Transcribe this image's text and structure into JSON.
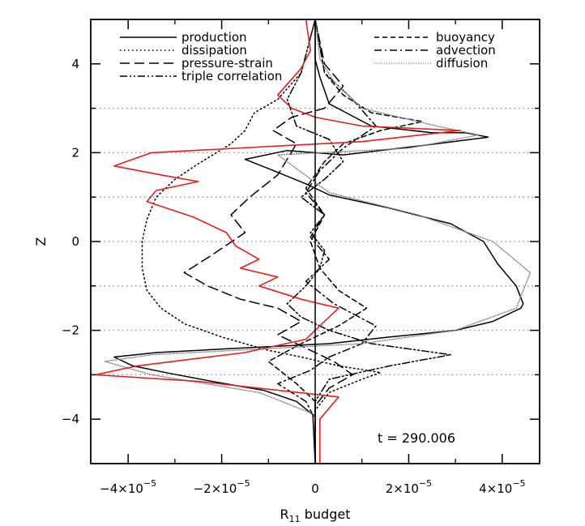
{
  "chart_data": {
    "type": "line",
    "title": "",
    "xlabel_main": "R",
    "xlabel_sub": "11",
    "xlabel_rest": " budget",
    "ylabel": "Z",
    "xlim": [
      -4.8e-05,
      4.8e-05
    ],
    "ylim": [
      -5,
      5
    ],
    "x_ticks": [
      {
        "value": -4e-05,
        "mant": "−4×10",
        "exp": "−5"
      },
      {
        "value": -2e-05,
        "mant": "−2×10",
        "exp": "−5"
      },
      {
        "value": 0,
        "mant": "0",
        "exp": ""
      },
      {
        "value": 2e-05,
        "mant": "2×10",
        "exp": "−5"
      },
      {
        "value": 4e-05,
        "mant": "4×10",
        "exp": "−5"
      }
    ],
    "y_ticks": [
      {
        "value": 4,
        "label": "4"
      },
      {
        "value": 2,
        "label": "2"
      },
      {
        "value": 0,
        "label": "0"
      },
      {
        "value": -2,
        "label": "−2"
      },
      {
        "value": -4,
        "label": "−4"
      }
    ],
    "y_gridlines": [
      3,
      2,
      1,
      0,
      -1,
      -2,
      -3
    ],
    "grid_style": "dotted horizontal",
    "annotation": "t  =  290.006",
    "annotation_position": "bottom-right",
    "legend_position": "top",
    "series": [
      {
        "name": "production",
        "style": "solid",
        "color": "#000000",
        "legend_column": "left",
        "x": [
          0,
          0,
          1e-06,
          3e-06,
          1.2e-05,
          2.5e-05,
          3.2e-05,
          3.7e-05,
          2.2e-05,
          6e-06,
          -6e-06,
          -1.5e-05,
          -9e-06,
          -2e-06,
          3e-06,
          1.6e-05,
          2.9e-05,
          3.6e-05,
          3.9e-05,
          4.3e-05,
          4.45e-05,
          4.4e-05,
          3.8e-05,
          3e-05,
          1.6e-05,
          3e-06,
          -1.6e-05,
          -3.4e-05,
          -4.3e-05,
          -3.9e-05,
          -3.2e-05,
          -2.2e-05,
          -1.1e-05,
          -4e-06,
          -5e-07,
          0
        ],
        "y": [
          5,
          4.1,
          3.7,
          3.1,
          2.6,
          2.45,
          2.45,
          2.35,
          2.15,
          1.95,
          2.05,
          1.85,
          1.6,
          1.3,
          1.05,
          0.75,
          0.4,
          0.0,
          -0.5,
          -1.0,
          -1.4,
          -1.5,
          -1.8,
          -2.0,
          -2.15,
          -2.3,
          -2.4,
          -2.5,
          -2.6,
          -2.8,
          -2.95,
          -3.15,
          -3.35,
          -3.6,
          -3.9,
          -5
        ]
      },
      {
        "name": "dissipation",
        "style": "dotted",
        "color": "#000000",
        "legend_column": "left",
        "x": [
          0,
          -3e-06,
          -8e-06,
          -1.3e-05,
          -1.5e-05,
          -1.8e-05,
          -2.5e-05,
          -3e-05,
          -3.4e-05,
          -3.6e-05,
          -3.7e-05,
          -3.7e-05,
          -3.6e-05,
          -3.3e-05,
          -2.8e-05,
          -2e-05,
          -1e-05,
          -3e-06,
          5e-06,
          1.4e-05,
          1e-05,
          3e-06,
          0,
          0
        ],
        "y": [
          5,
          3.8,
          3.2,
          2.9,
          2.5,
          2.2,
          1.75,
          1.4,
          1.0,
          0.5,
          0.0,
          -0.6,
          -1.1,
          -1.5,
          -1.85,
          -2.15,
          -2.45,
          -2.6,
          -2.8,
          -2.95,
          -3.1,
          -3.4,
          -3.8,
          -5
        ]
      },
      {
        "name": "pressure-strain",
        "style": "long-dash",
        "color": "#000000",
        "legend_column": "left",
        "x": [
          0,
          2e-06,
          6e-06,
          2e-06,
          -5e-06,
          -9e-06,
          -4e-06,
          -8e-06,
          -1.4e-05,
          -1.8e-05,
          -1.5e-05,
          -2.2e-05,
          -2.8e-05,
          -2.3e-05,
          -1.6e-05,
          -8e-06,
          -3e-06,
          -8e-06,
          -2e-06,
          4e-06,
          8e-06,
          3e-06,
          0,
          0
        ],
        "y": [
          5,
          4.0,
          3.5,
          3.0,
          2.8,
          2.5,
          2.2,
          1.5,
          1.0,
          0.6,
          0.2,
          -0.3,
          -0.7,
          -1.0,
          -1.3,
          -1.5,
          -1.8,
          -2.1,
          -2.4,
          -2.7,
          -3.0,
          -3.3,
          -3.7,
          -5
        ]
      },
      {
        "name": "triple correlation",
        "style": "dash-dot-dot",
        "color": "#000000",
        "legend_column": "left",
        "x": [
          0,
          -3e-06,
          -6e-06,
          -4e-06,
          3e-06,
          6e-06,
          2e-06,
          -3e-06,
          2e-06,
          -1e-06,
          2e-06,
          1e-06,
          -2e-06,
          -6e-06,
          -3e-06,
          3e-06,
          1.2e-05,
          2.9e-05,
          1.6e-05,
          3e-06,
          0,
          0
        ],
        "y": [
          5,
          3.8,
          3.2,
          2.6,
          2.3,
          1.8,
          1.4,
          1.0,
          0.6,
          0.2,
          -0.2,
          -0.6,
          -1.0,
          -1.4,
          -1.7,
          -2.0,
          -2.3,
          -2.55,
          -2.8,
          -3.1,
          -3.6,
          -5
        ]
      },
      {
        "name": "buoyancy",
        "style": "short-dash",
        "color": "#000000",
        "legend_column": "right",
        "x": [
          0,
          2e-06,
          6e-06,
          1.2e-05,
          2.3e-05,
          1.4e-05,
          6e-06,
          2e-06,
          -2e-06,
          2e-06,
          -1e-06,
          1e-06,
          5e-06,
          1.1e-05,
          5e-06,
          -3e-06,
          -1e-05,
          -4e-06,
          0,
          0
        ],
        "y": [
          5,
          3.8,
          3.3,
          2.9,
          2.7,
          2.5,
          2.2,
          1.8,
          1.2,
          0.6,
          0.0,
          -0.6,
          -1.1,
          -1.5,
          -1.9,
          -2.3,
          -2.7,
          -3.2,
          -3.6,
          -5
        ]
      },
      {
        "name": "advection",
        "style": "dash-dot",
        "color": "#000000",
        "legend_column": "right",
        "x": [
          0,
          2e-06,
          8e-06,
          1.3e-05,
          6e-06,
          1e-06,
          -2e-06,
          2e-06,
          -1e-06,
          3e-06,
          -2e-06,
          4e-06,
          1.3e-05,
          1e-05,
          3e-06,
          -1e-06,
          -8e-06,
          -2e-06,
          0,
          0
        ],
        "y": [
          5,
          3.8,
          3.2,
          2.6,
          2.1,
          1.6,
          1.1,
          0.6,
          0.1,
          -0.4,
          -0.9,
          -1.4,
          -1.9,
          -2.3,
          -2.6,
          -2.9,
          -3.2,
          -3.6,
          -4.0,
          -5
        ]
      },
      {
        "name": "diffusion",
        "style": "fine-dotted",
        "color": "#888888",
        "legend_column": "right",
        "x": [
          0,
          1e-06,
          4e-06,
          1e-05,
          2.6e-05,
          3.5e-05,
          2e-05,
          -8e-06,
          3e-06,
          2.2e-05,
          3.8e-05,
          4.6e-05,
          4.3e-05,
          3e-05,
          1e-05,
          -3.5e-05,
          -4.5e-05,
          -3.5e-05,
          -1.2e-05,
          0,
          0
        ],
        "y": [
          5,
          4.1,
          3.6,
          3.0,
          2.6,
          2.4,
          2.1,
          1.95,
          1.1,
          0.6,
          0.0,
          -0.7,
          -1.5,
          -2.0,
          -2.3,
          -2.55,
          -2.7,
          -3.0,
          -3.4,
          -3.9,
          -5
        ]
      },
      {
        "name": "",
        "style": "solid",
        "color": "#dd2222",
        "x": [
          -2e-06,
          -1e-06,
          -3e-06,
          -8e-06,
          -5e-06,
          0,
          1e-05,
          3.1e-05,
          1e-05,
          -3.5e-05,
          -4.3e-05,
          -3.3e-05,
          -2.5e-05,
          -3.4e-05,
          -3.6e-05,
          -2.6e-05,
          -1.9e-05,
          -1.7e-05,
          -1.2e-05,
          -1.6e-05,
          -8e-06,
          -1.2e-05,
          -3e-06,
          5e-06,
          2e-06,
          -2e-06,
          -1.5e-05,
          -3.8e-05,
          -4.7e-05,
          -2.5e-05,
          5e-06,
          1e-06,
          1e-06
        ],
        "y": [
          5,
          4.3,
          3.9,
          3.3,
          3.0,
          2.8,
          2.6,
          2.5,
          2.25,
          2.0,
          1.7,
          1.5,
          1.35,
          1.15,
          0.9,
          0.55,
          0.2,
          -0.1,
          -0.4,
          -0.6,
          -0.8,
          -1.0,
          -1.3,
          -1.5,
          -1.8,
          -2.2,
          -2.5,
          -2.8,
          -3.0,
          -3.15,
          -3.5,
          -4.0,
          -5
        ]
      }
    ]
  }
}
